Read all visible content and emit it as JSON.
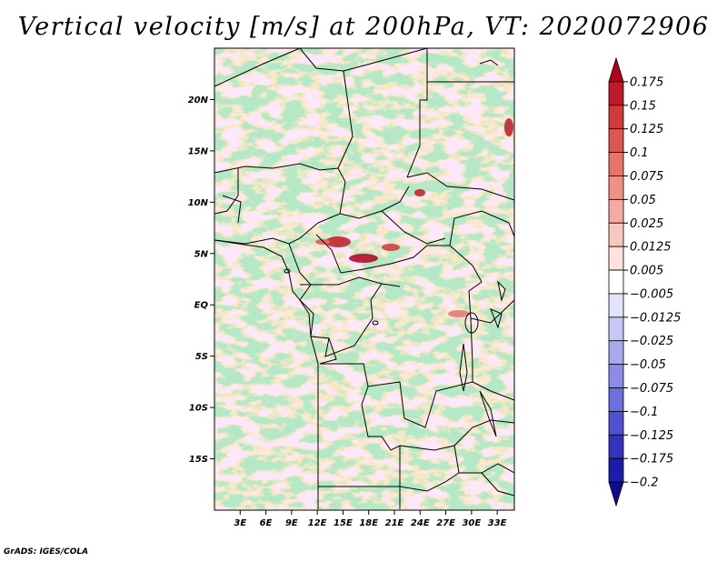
{
  "title": "Vertical velocity [m/s] at 200hPa, VT: 2020072906",
  "credit": "GrADS: IGES/COLA",
  "map": {
    "variable": "Vertical velocity",
    "units": "m/s",
    "level": "200hPa",
    "valid_time": "2020072906",
    "lon_range": [
      0,
      35
    ],
    "lat_range": [
      -20,
      25
    ],
    "lat_ticks": [
      {
        "value": 20,
        "label": "20N"
      },
      {
        "value": 15,
        "label": "15N"
      },
      {
        "value": 10,
        "label": "10N"
      },
      {
        "value": 5,
        "label": "5N"
      },
      {
        "value": 0,
        "label": "EQ"
      },
      {
        "value": -5,
        "label": "5S"
      },
      {
        "value": -10,
        "label": "10S"
      },
      {
        "value": -15,
        "label": "15S"
      }
    ],
    "lon_ticks": [
      {
        "value": 3,
        "label": "3E"
      },
      {
        "value": 6,
        "label": "6E"
      },
      {
        "value": 9,
        "label": "9E"
      },
      {
        "value": 12,
        "label": "12E"
      },
      {
        "value": 15,
        "label": "15E"
      },
      {
        "value": 18,
        "label": "18E"
      },
      {
        "value": 21,
        "label": "21E"
      },
      {
        "value": 24,
        "label": "24E"
      },
      {
        "value": 27,
        "label": "27E"
      },
      {
        "value": 30,
        "label": "30E"
      },
      {
        "value": 33,
        "label": "33E"
      }
    ]
  },
  "colorbar": {
    "levels": [
      "0.175",
      "0.15",
      "0.125",
      "0.1",
      "0.075",
      "0.05",
      "0.025",
      "0.0125",
      "0.005",
      "-0.005",
      "-0.0125",
      "-0.025",
      "-0.05",
      "-0.075",
      "-0.1",
      "-0.125",
      "-0.175",
      "-0.2"
    ],
    "colors": [
      "#b0001c",
      "#c01a2a",
      "#d03a3a",
      "#de5650",
      "#e8736a",
      "#f09086",
      "#f5aaa2",
      "#f9c6c0",
      "#fde2de",
      "#ffffff",
      "#e2e2fd",
      "#c6c6f7",
      "#a9a9f0",
      "#8c8ce8",
      "#6e6ede",
      "#5050d0",
      "#3333c0",
      "#1c1cac",
      "#0d0d90"
    ]
  }
}
